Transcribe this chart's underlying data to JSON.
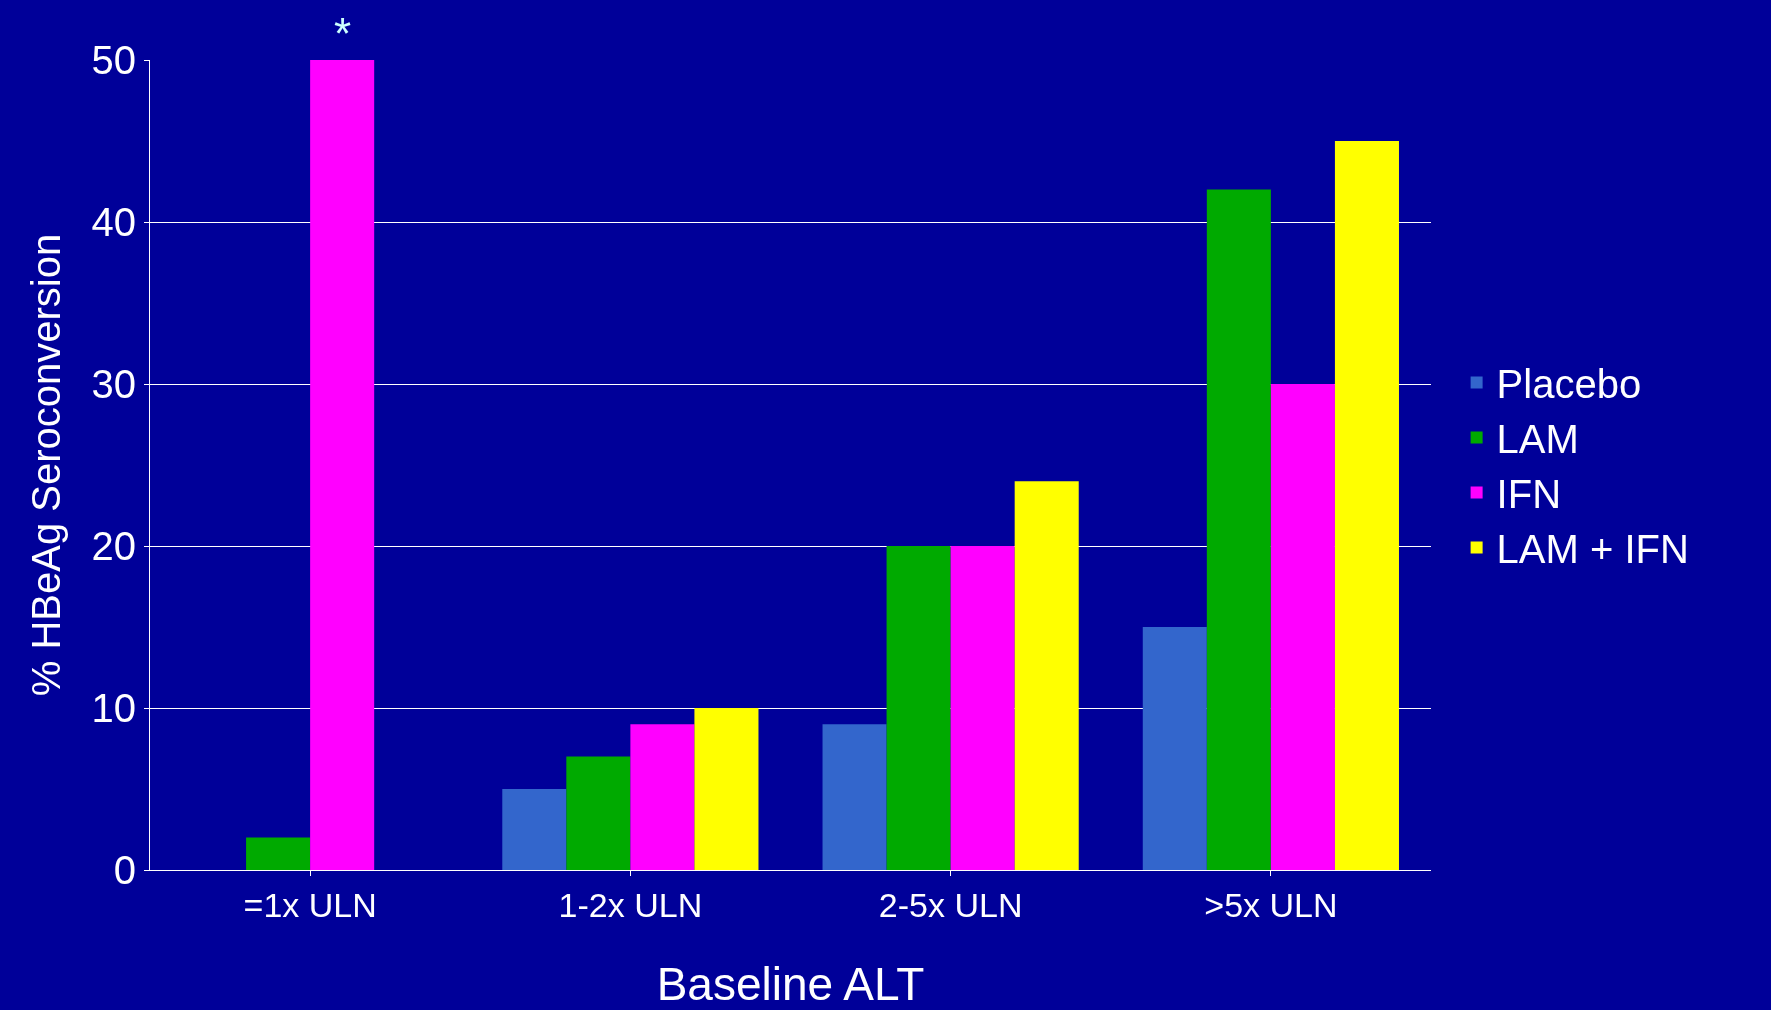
{
  "chart_data": {
    "type": "bar",
    "xlabel": "Baseline ALT",
    "ylabel": "% HBeAg Seroconversion",
    "categories": [
      "=1x ULN",
      "1-2x ULN",
      "2-5x ULN",
      ">5x ULN"
    ],
    "series": [
      {
        "name": "Placebo",
        "color": "#3366cc",
        "values": [
          0,
          5,
          9,
          15
        ]
      },
      {
        "name": "LAM",
        "color": "#00aa00",
        "values": [
          2,
          7,
          20,
          42
        ]
      },
      {
        "name": "IFN",
        "color": "#ff00ff",
        "values": [
          50,
          9,
          20,
          30
        ]
      },
      {
        "name": "LAM + IFN",
        "color": "#ffff00",
        "values": [
          0,
          10,
          24,
          45
        ]
      }
    ],
    "ylim": [
      0,
      50
    ],
    "yticks": [
      0,
      10,
      20,
      30,
      40,
      50
    ],
    "grid": "y",
    "legend": "right",
    "annotations": [
      {
        "text": "*",
        "x": "=1x ULN",
        "y": 50
      }
    ]
  }
}
